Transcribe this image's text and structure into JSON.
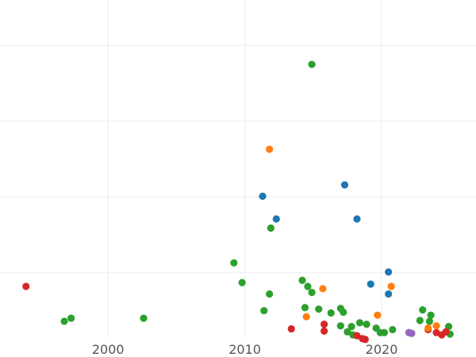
{
  "chart_data": {
    "type": "scatter",
    "title": "",
    "xlabel": "",
    "ylabel": "",
    "xlim": [
      1992.1,
      2026.9
    ],
    "ylim": [
      0,
      4.45
    ],
    "grid": true,
    "legend": false,
    "x_ticks": [
      2000,
      2010,
      2020
    ],
    "x_tick_labels": [
      "2000",
      "2010",
      "2020"
    ],
    "y_gridlines": [
      0.85,
      1.85,
      2.85,
      3.85
    ],
    "series": [
      {
        "color": "#2ca02c",
        "points": [
          {
            "x": 1996.8,
            "y": 0.21
          },
          {
            "x": 1997.3,
            "y": 0.25
          },
          {
            "x": 2002.6,
            "y": 0.25
          },
          {
            "x": 2009.2,
            "y": 0.98
          },
          {
            "x": 2009.8,
            "y": 0.72
          },
          {
            "x": 2011.4,
            "y": 0.35
          },
          {
            "x": 2011.8,
            "y": 0.57
          },
          {
            "x": 2011.9,
            "y": 1.44
          },
          {
            "x": 2014.2,
            "y": 0.75
          },
          {
            "x": 2014.4,
            "y": 0.39
          },
          {
            "x": 2014.6,
            "y": 0.67
          },
          {
            "x": 2014.9,
            "y": 0.59
          },
          {
            "x": 2014.9,
            "y": 3.6
          },
          {
            "x": 2015.4,
            "y": 0.37
          },
          {
            "x": 2016.3,
            "y": 0.32
          },
          {
            "x": 2017.0,
            "y": 0.38
          },
          {
            "x": 2017.0,
            "y": 0.15
          },
          {
            "x": 2017.2,
            "y": 0.33
          },
          {
            "x": 2017.5,
            "y": 0.07
          },
          {
            "x": 2017.8,
            "y": 0.14
          },
          {
            "x": 2017.9,
            "y": 0.03
          },
          {
            "x": 2018.4,
            "y": 0.19
          },
          {
            "x": 2018.9,
            "y": 0.17
          },
          {
            "x": 2019.6,
            "y": 0.12
          },
          {
            "x": 2019.9,
            "y": 0.06
          },
          {
            "x": 2020.2,
            "y": 0.06
          },
          {
            "x": 2020.8,
            "y": 0.1
          },
          {
            "x": 2022.0,
            "y": 0.06
          },
          {
            "x": 2022.8,
            "y": 0.22
          },
          {
            "x": 2023.0,
            "y": 0.36
          },
          {
            "x": 2023.5,
            "y": 0.21
          },
          {
            "x": 2023.6,
            "y": 0.29
          },
          {
            "x": 2024.9,
            "y": 0.14
          },
          {
            "x": 2025.0,
            "y": 0.04
          }
        ]
      },
      {
        "color": "#d62728",
        "points": [
          {
            "x": 1994.0,
            "y": 0.67
          },
          {
            "x": 2013.4,
            "y": 0.11
          },
          {
            "x": 2015.8,
            "y": 0.17
          },
          {
            "x": 2015.8,
            "y": 0.08
          },
          {
            "x": 2018.2,
            "y": 0.02
          },
          {
            "x": 2018.6,
            "y": -0.02
          },
          {
            "x": 2018.8,
            "y": -0.03
          },
          {
            "x": 2023.4,
            "y": 0.1
          },
          {
            "x": 2024.0,
            "y": 0.06
          },
          {
            "x": 2024.4,
            "y": 0.03
          },
          {
            "x": 2024.7,
            "y": 0.07
          }
        ]
      },
      {
        "color": "#1f77b4",
        "points": [
          {
            "x": 2011.3,
            "y": 1.86
          },
          {
            "x": 2012.3,
            "y": 1.56
          },
          {
            "x": 2017.3,
            "y": 2.01
          },
          {
            "x": 2018.2,
            "y": 1.56
          },
          {
            "x": 2019.2,
            "y": 0.7
          },
          {
            "x": 2020.5,
            "y": 0.86
          },
          {
            "x": 2020.5,
            "y": 0.57
          }
        ]
      },
      {
        "color": "#ff7f0e",
        "points": [
          {
            "x": 2011.8,
            "y": 2.48
          },
          {
            "x": 2014.5,
            "y": 0.27
          },
          {
            "x": 2015.7,
            "y": 0.64
          },
          {
            "x": 2019.7,
            "y": 0.29
          },
          {
            "x": 2020.7,
            "y": 0.67
          },
          {
            "x": 2023.4,
            "y": 0.12
          },
          {
            "x": 2024.0,
            "y": 0.15
          }
        ]
      },
      {
        "color": "#9467bd",
        "points": [
          {
            "x": 2022.0,
            "y": 0.06
          },
          {
            "x": 2022.2,
            "y": 0.05
          }
        ]
      }
    ]
  }
}
